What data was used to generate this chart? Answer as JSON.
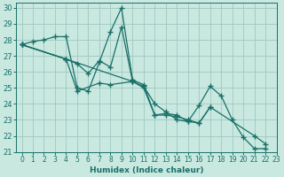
{
  "title": "",
  "xlabel": "Humidex (Indice chaleur)",
  "ylabel": "",
  "bg_color": "#c8e8e0",
  "grid_color": "#a0c8c0",
  "line_color": "#1a7068",
  "marker_color": "#1a7068",
  "xlim": [
    -0.5,
    23
  ],
  "ylim": [
    21,
    30.3
  ],
  "xticks": [
    0,
    1,
    2,
    3,
    4,
    5,
    6,
    7,
    8,
    9,
    10,
    11,
    12,
    13,
    14,
    15,
    16,
    17,
    18,
    19,
    20,
    21,
    22,
    23
  ],
  "yticks": [
    21,
    22,
    23,
    24,
    25,
    26,
    27,
    28,
    29,
    30
  ],
  "series": [
    {
      "x": [
        0,
        1,
        2,
        3,
        4,
        5,
        6,
        7,
        8,
        9,
        10,
        11,
        12,
        13,
        14,
        15,
        16,
        17,
        18,
        19,
        20,
        21,
        22
      ],
      "y": [
        27.7,
        27.9,
        28.0,
        28.2,
        28.2,
        25.0,
        24.8,
        26.6,
        28.5,
        30.0,
        25.5,
        25.2,
        23.3,
        23.4,
        23.3,
        22.9,
        23.9,
        25.1,
        24.5,
        23.0,
        21.9,
        21.2,
        21.2
      ]
    },
    {
      "x": [
        0,
        4,
        5,
        6,
        7,
        8,
        9,
        10,
        11,
        12,
        13,
        14,
        15,
        16,
        17,
        21,
        22
      ],
      "y": [
        27.7,
        26.8,
        26.5,
        25.9,
        26.7,
        26.3,
        28.8,
        25.4,
        25.1,
        24.0,
        23.5,
        23.0,
        22.9,
        22.8,
        23.8,
        22.0,
        21.5
      ]
    },
    {
      "x": [
        0,
        4,
        5,
        7,
        8,
        10,
        11,
        12,
        13,
        14,
        15,
        16,
        17
      ],
      "y": [
        27.7,
        26.8,
        24.8,
        25.3,
        25.2,
        25.4,
        25.0,
        23.3,
        23.3,
        23.2,
        23.0,
        22.8,
        23.8
      ]
    },
    {
      "x": [
        0,
        4,
        10
      ],
      "y": [
        27.7,
        26.8,
        25.4
      ]
    }
  ]
}
